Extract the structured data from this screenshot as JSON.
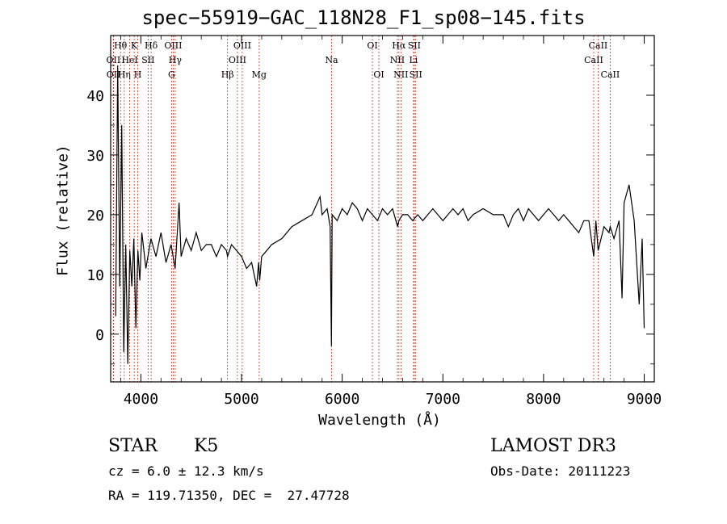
{
  "chart_data": {
    "type": "line",
    "title": "spec−55919−GAC_118N28_F1_sp08−145.fits",
    "xlabel": "Wavelength (Å)",
    "ylabel": "Flux (relative)",
    "xlim": [
      3700,
      9100
    ],
    "ylim": [
      -8,
      50
    ],
    "xticks": [
      {
        "value": 4000,
        "label": "4000"
      },
      {
        "value": 5000,
        "label": "5000"
      },
      {
        "value": 6000,
        "label": "6000"
      },
      {
        "value": 7000,
        "label": "7000"
      },
      {
        "value": 8000,
        "label": "8000"
      },
      {
        "value": 9000,
        "label": "9000"
      }
    ],
    "yticks": [
      {
        "value": 0,
        "label": "0"
      },
      {
        "value": 10,
        "label": "10"
      },
      {
        "value": 20,
        "label": "20"
      },
      {
        "value": 30,
        "label": "30"
      },
      {
        "value": 40,
        "label": "40"
      }
    ],
    "series": [
      {
        "name": "flux",
        "x": [
          3750,
          3770,
          3790,
          3810,
          3830,
          3850,
          3870,
          3890,
          3910,
          3930,
          3950,
          3970,
          3990,
          4010,
          4050,
          4100,
          4150,
          4200,
          4250,
          4300,
          4340,
          4380,
          4400,
          4450,
          4500,
          4550,
          4600,
          4650,
          4700,
          4750,
          4800,
          4850,
          4861,
          4900,
          4950,
          5000,
          5050,
          5100,
          5150,
          5170,
          5180,
          5200,
          5250,
          5300,
          5400,
          5500,
          5600,
          5700,
          5780,
          5800,
          5850,
          5880,
          5893,
          5900,
          5950,
          6000,
          6050,
          6100,
          6150,
          6200,
          6250,
          6300,
          6350,
          6400,
          6450,
          6500,
          6550,
          6563,
          6600,
          6650,
          6700,
          6750,
          6800,
          6850,
          6900,
          6950,
          7000,
          7050,
          7100,
          7150,
          7200,
          7250,
          7300,
          7400,
          7500,
          7600,
          7650,
          7700,
          7750,
          7800,
          7850,
          7900,
          7950,
          8000,
          8050,
          8100,
          8150,
          8200,
          8250,
          8300,
          8350,
          8400,
          8450,
          8498,
          8520,
          8542,
          8600,
          8650,
          8662,
          8700,
          8750,
          8780,
          8800,
          8850,
          8900,
          8950,
          8980,
          9000
        ],
        "y": [
          3,
          45,
          8,
          35,
          -3,
          15,
          -5,
          14,
          8,
          16,
          1,
          14,
          9,
          17,
          11,
          16,
          13,
          17,
          12,
          15,
          11,
          22,
          13,
          16,
          14,
          17,
          14,
          15,
          15,
          13,
          15,
          14,
          13,
          15,
          14,
          13,
          11,
          12,
          8,
          12,
          9,
          13,
          14,
          15,
          16,
          18,
          19,
          20,
          23,
          20,
          21,
          18,
          -2,
          20,
          19,
          21,
          20,
          22,
          21,
          19,
          21,
          20,
          19,
          21,
          20,
          21,
          18,
          19,
          20,
          20,
          19,
          20,
          19,
          20,
          21,
          20,
          19,
          20,
          21,
          20,
          21,
          19,
          20,
          21,
          20,
          20,
          18,
          20,
          21,
          19,
          21,
          20,
          19,
          20,
          21,
          20,
          19,
          20,
          19,
          18,
          17,
          19,
          19,
          13,
          19,
          14,
          18,
          17,
          18,
          16,
          19,
          6,
          22,
          25,
          19,
          5,
          16,
          1
        ]
      }
    ],
    "lines": [
      {
        "name": "OII",
        "wl": 3727,
        "row": 2
      },
      {
        "name": "OII",
        "wl": 3729,
        "row": 3
      },
      {
        "name": "Hθ",
        "wl": 3798,
        "row": 1
      },
      {
        "name": "Hη",
        "wl": 3835,
        "row": 3
      },
      {
        "name": "HeI",
        "wl": 3889,
        "row": 2
      },
      {
        "name": "K",
        "wl": 3934,
        "row": 1
      },
      {
        "name": "H",
        "wl": 3969,
        "row": 3
      },
      {
        "name": "SII",
        "wl": 4072,
        "row": 2
      },
      {
        "name": "Hδ",
        "wl": 4102,
        "row": 1
      },
      {
        "name": "G",
        "wl": 4305,
        "row": 3
      },
      {
        "name": "OIII",
        "wl": 4321,
        "row": 1
      },
      {
        "name": "Hγ",
        "wl": 4341,
        "row": 2
      },
      {
        "name": "Hβ",
        "wl": 4861,
        "row": 3
      },
      {
        "name": "OIII",
        "wl": 4959,
        "row": 2
      },
      {
        "name": "OIII",
        "wl": 5007,
        "row": 1
      },
      {
        "name": "Mg",
        "wl": 5175,
        "row": 3
      },
      {
        "name": "Na",
        "wl": 5894,
        "row": 2
      },
      {
        "name": "OI",
        "wl": 6300,
        "row": 1
      },
      {
        "name": "OI",
        "wl": 6364,
        "row": 3
      },
      {
        "name": "NII",
        "wl": 6548,
        "row": 2
      },
      {
        "name": "Hα",
        "wl": 6563,
        "row": 1
      },
      {
        "name": "NII",
        "wl": 6583,
        "row": 3
      },
      {
        "name": "Li",
        "wl": 6708,
        "row": 2
      },
      {
        "name": "SII",
        "wl": 6716,
        "row": 1
      },
      {
        "name": "SII",
        "wl": 6731,
        "row": 3
      },
      {
        "name": "CaII",
        "wl": 8498,
        "row": 2
      },
      {
        "name": "CaII",
        "wl": 8542,
        "row": 1
      },
      {
        "name": "CaII",
        "wl": 8662,
        "row": 3
      }
    ]
  },
  "info": {
    "class": "STAR",
    "subclass": "K5",
    "cz": "cz = 6.0 ± 12.3 km/s",
    "coords": "RA = 119.71350, DEC =  27.47728",
    "survey": "LAMOST DR3",
    "obsdate": "Obs-Date: 20111223"
  }
}
